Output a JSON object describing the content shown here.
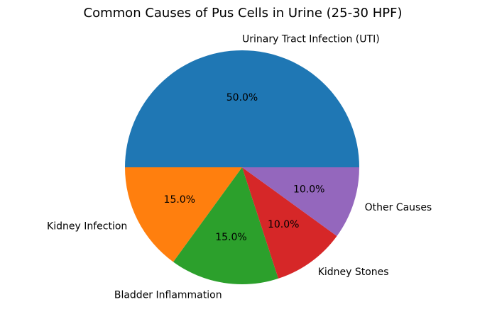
{
  "chart_data": {
    "type": "pie",
    "title": "Common Causes of Pus Cells in Urine (25-30 HPF)",
    "categories": [
      "Urinary Tract Infection (UTI)",
      "Kidney Infection",
      "Bladder Inflammation",
      "Kidney Stones",
      "Other Causes"
    ],
    "values": [
      50,
      15,
      15,
      10,
      10
    ],
    "percent_labels": [
      "50.0%",
      "15.0%",
      "15.0%",
      "10.0%",
      "10.0%"
    ],
    "colors": [
      "#1f77b4",
      "#ff7f0e",
      "#2ca02c",
      "#d62728",
      "#9467bd"
    ],
    "start_angle_deg": 0,
    "direction": "counterclockwise",
    "legend": "none"
  }
}
